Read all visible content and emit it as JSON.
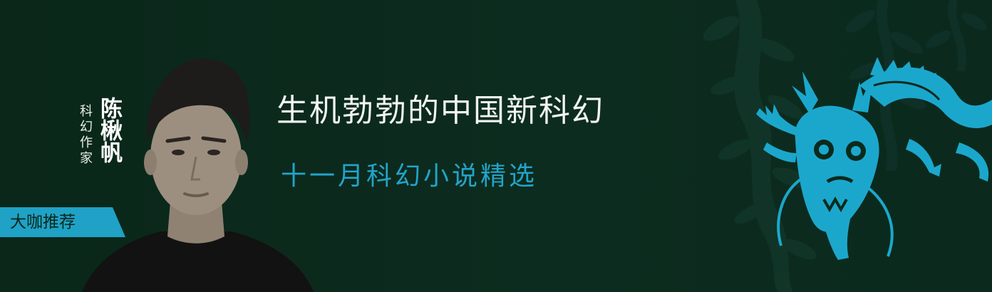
{
  "author": {
    "name": "陈楸帆",
    "title": "科幻作家"
  },
  "tag": {
    "label": "大咖推荐"
  },
  "headline": "生机勃勃的中国新科幻",
  "subline": "十一月科幻小说精选",
  "colors": {
    "background": "#0b2a1d",
    "accent": "#22a4c9",
    "tag": "#1fa2c6",
    "headline": "#f3f5f2"
  },
  "icons": {
    "portrait": "author-portrait",
    "dragon": "dragon-icon",
    "foliage": "foliage-decoration"
  }
}
